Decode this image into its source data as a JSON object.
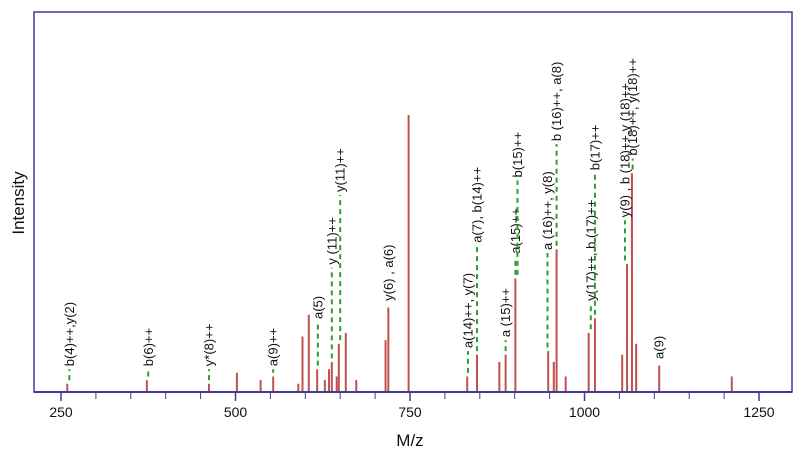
{
  "chart_data": {
    "type": "bar",
    "xlabel": "M/z",
    "ylabel": "Intensity",
    "xlim": [
      250,
      1250
    ],
    "ylim": [
      0,
      1
    ],
    "x_ticks": [
      250,
      500,
      750,
      1000,
      1250
    ],
    "minor_x_ticks": [
      300,
      350,
      400,
      450,
      550,
      600,
      650,
      700,
      800,
      850,
      900,
      950,
      1050,
      1100,
      1150,
      1200
    ],
    "grid": false,
    "colors": {
      "frame": "#3c3c96",
      "peak": "#c0504d",
      "annotation": "#2ca02c"
    },
    "peaks": [
      {
        "mz": 259,
        "i": 0.02
      },
      {
        "mz": 373,
        "i": 0.03
      },
      {
        "mz": 462,
        "i": 0.02
      },
      {
        "mz": 502,
        "i": 0.05
      },
      {
        "mz": 536,
        "i": 0.03
      },
      {
        "mz": 554,
        "i": 0.04
      },
      {
        "mz": 590,
        "i": 0.02
      },
      {
        "mz": 596,
        "i": 0.15
      },
      {
        "mz": 605,
        "i": 0.21
      },
      {
        "mz": 617,
        "i": 0.06
      },
      {
        "mz": 628,
        "i": 0.03
      },
      {
        "mz": 634,
        "i": 0.06
      },
      {
        "mz": 638,
        "i": 0.08
      },
      {
        "mz": 645,
        "i": 0.04
      },
      {
        "mz": 648,
        "i": 0.13
      },
      {
        "mz": 658,
        "i": 0.16
      },
      {
        "mz": 673,
        "i": 0.03
      },
      {
        "mz": 715,
        "i": 0.14
      },
      {
        "mz": 719,
        "i": 0.23
      },
      {
        "mz": 748,
        "i": 0.76
      },
      {
        "mz": 832,
        "i": 0.04
      },
      {
        "mz": 846,
        "i": 0.1
      },
      {
        "mz": 878,
        "i": 0.08
      },
      {
        "mz": 887,
        "i": 0.1
      },
      {
        "mz": 901,
        "i": 0.31
      },
      {
        "mz": 948,
        "i": 0.11
      },
      {
        "mz": 956,
        "i": 0.08
      },
      {
        "mz": 960,
        "i": 0.39
      },
      {
        "mz": 973,
        "i": 0.04
      },
      {
        "mz": 1006,
        "i": 0.16
      },
      {
        "mz": 1015,
        "i": 0.2
      },
      {
        "mz": 1054,
        "i": 0.1
      },
      {
        "mz": 1061,
        "i": 0.35
      },
      {
        "mz": 1068,
        "i": 0.6
      },
      {
        "mz": 1074,
        "i": 0.13
      },
      {
        "mz": 1107,
        "i": 0.07
      },
      {
        "mz": 1211,
        "i": 0.04
      }
    ],
    "annotations": [
      {
        "mz": 262,
        "text": "b(4)++,y(2)",
        "line_from": 0.03,
        "line_to": 0.06
      },
      {
        "mz": 375,
        "text": "b(6)++",
        "line_from": 0.04,
        "line_to": 0.06
      },
      {
        "mz": 462,
        "text": "y*(8)++",
        "line_from": 0.03,
        "line_to": 0.06
      },
      {
        "mz": 554,
        "text": "a(9)++",
        "line_from": 0.05,
        "line_to": 0.06
      },
      {
        "mz": 618,
        "text": "a(5)",
        "line_from": 0.07,
        "line_to": 0.19
      },
      {
        "mz": 638,
        "text": "y (11)++",
        "line_from": 0.09,
        "line_to": 0.34
      },
      {
        "mz": 650,
        "text": "y(11)++",
        "line_from": 0.14,
        "line_to": 0.54
      },
      {
        "mz": 719,
        "text": "y(6) , a(6)",
        "line_from": 0.24,
        "line_to": 0.24
      },
      {
        "mz": 833,
        "text": "a(14)++, y(7)",
        "line_from": 0.05,
        "line_to": 0.11
      },
      {
        "mz": 846,
        "text": "a(7), b(14)++",
        "line_from": 0.11,
        "line_to": 0.4
      },
      {
        "mz": 887,
        "text": "a (15)++",
        "line_from": 0.11,
        "line_to": 0.14
      },
      {
        "mz": 901,
        "text": "a(15)++",
        "line_from": 0.32,
        "line_to": 0.37
      },
      {
        "mz": 904,
        "text": "b(15)++",
        "line_from": 0.32,
        "line_to": 0.58
      },
      {
        "mz": 947,
        "text": "a  (16)++, y(8)",
        "line_from": 0.12,
        "line_to": 0.38
      },
      {
        "mz": 960,
        "text": "b  (16)++, a(8)",
        "line_from": 0.4,
        "line_to": 0.68
      },
      {
        "mz": 1009,
        "text": "y(17)++, b (17)++",
        "line_from": 0.17,
        "line_to": 0.24
      },
      {
        "mz": 1015,
        "text": "b(17)++",
        "line_from": 0.21,
        "line_to": 0.6
      },
      {
        "mz": 1058,
        "text": "y(9) , b (18)++,y   (18)++",
        "line_from": 0.36,
        "line_to": 0.47
      },
      {
        "mz": 1069,
        "text": "b(18)++, y(18)++",
        "line_from": 0.61,
        "line_to": 0.64
      },
      {
        "mz": 1107,
        "text": "a(9)",
        "line_from": 0.08,
        "line_to": 0.08
      }
    ]
  }
}
